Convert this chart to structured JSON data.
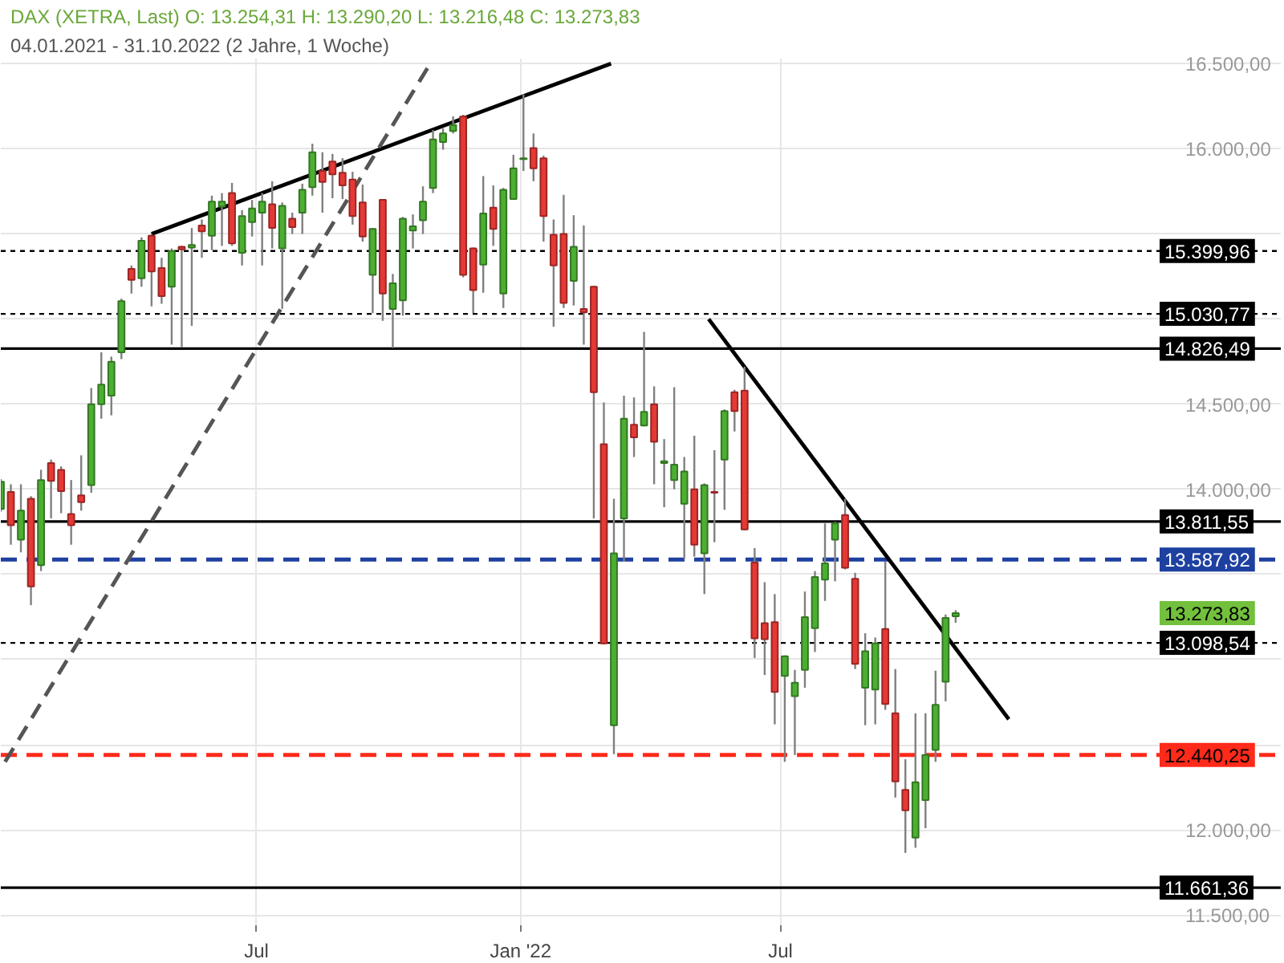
{
  "chart_data": {
    "type": "candlestick",
    "title": "DAX (XETRA, Last)  O: 13.254,31  H: 13.290,20  L: 13.216,48  C: 13.273,83",
    "subtitle": "04.01.2021 - 31.10.2022 (2 Jahre, 1 Woche)",
    "x": [
      "2021-01-04",
      "2021-01-11",
      "2021-01-18",
      "2021-01-25",
      "2021-02-01",
      "2021-02-08",
      "2021-02-15",
      "2021-02-22",
      "2021-03-01",
      "2021-03-08",
      "2021-03-15",
      "2021-03-22",
      "2021-03-29",
      "2021-04-05",
      "2021-04-12",
      "2021-04-19",
      "2021-04-26",
      "2021-05-03",
      "2021-05-10",
      "2021-05-17",
      "2021-05-24",
      "2021-05-31",
      "2021-06-07",
      "2021-06-14",
      "2021-06-21",
      "2021-06-28",
      "2021-07-05",
      "2021-07-12",
      "2021-07-19",
      "2021-07-26",
      "2021-08-02",
      "2021-08-09",
      "2021-08-16",
      "2021-08-23",
      "2021-08-30",
      "2021-09-06",
      "2021-09-13",
      "2021-09-20",
      "2021-09-27",
      "2021-10-04",
      "2021-10-11",
      "2021-10-18",
      "2021-10-25",
      "2021-11-01",
      "2021-11-08",
      "2021-11-15",
      "2021-11-22",
      "2021-11-29",
      "2021-12-06",
      "2021-12-13",
      "2021-12-20",
      "2021-12-27",
      "2022-01-03",
      "2022-01-10",
      "2022-01-17",
      "2022-01-24",
      "2022-01-31",
      "2022-02-07",
      "2022-02-14",
      "2022-02-21",
      "2022-02-28",
      "2022-03-07",
      "2022-03-14",
      "2022-03-21",
      "2022-03-28",
      "2022-04-04",
      "2022-04-11",
      "2022-04-18",
      "2022-04-25",
      "2022-05-02",
      "2022-05-09",
      "2022-05-16",
      "2022-05-23",
      "2022-05-30",
      "2022-06-06",
      "2022-06-13",
      "2022-06-20",
      "2022-06-27",
      "2022-07-04",
      "2022-07-11",
      "2022-07-18",
      "2022-07-25",
      "2022-08-01",
      "2022-08-08",
      "2022-08-15",
      "2022-08-22",
      "2022-08-29",
      "2022-09-05",
      "2022-09-12",
      "2022-09-19",
      "2022-09-26",
      "2022-10-03",
      "2022-10-10",
      "2022-10-17",
      "2022-10-24",
      "2022-10-31"
    ],
    "ohlc": [
      [
        13885,
        14060,
        13870,
        14045
      ],
      [
        13985,
        14030,
        13675,
        13790
      ],
      [
        13705,
        14030,
        13630,
        13875
      ],
      [
        13945,
        13960,
        13320,
        13430
      ],
      [
        13555,
        14115,
        13520,
        14055
      ],
      [
        14155,
        14175,
        13830,
        14050
      ],
      [
        14115,
        14135,
        13860,
        13990
      ],
      [
        13855,
        14055,
        13675,
        13790
      ],
      [
        13965,
        14200,
        13875,
        13925
      ],
      [
        14025,
        14595,
        13980,
        14500
      ],
      [
        14500,
        14805,
        14415,
        14615
      ],
      [
        14550,
        14780,
        14435,
        14750
      ],
      [
        14805,
        15120,
        14765,
        15105
      ],
      [
        15295,
        15315,
        15150,
        15230
      ],
      [
        15240,
        15480,
        15190,
        15460
      ],
      [
        15490,
        15500,
        15075,
        15280
      ],
      [
        15300,
        15360,
        15090,
        15135
      ],
      [
        15190,
        15415,
        14850,
        15400
      ],
      [
        15425,
        15430,
        14835,
        15410
      ],
      [
        15420,
        15535,
        14960,
        15435
      ],
      [
        15550,
        15585,
        15360,
        15515
      ],
      [
        15490,
        15725,
        15405,
        15690
      ],
      [
        15660,
        15740,
        15430,
        15690
      ],
      [
        15740,
        15800,
        15430,
        15445
      ],
      [
        15390,
        15640,
        15315,
        15605
      ],
      [
        15570,
        15700,
        15485,
        15650
      ],
      [
        15625,
        15740,
        15315,
        15690
      ],
      [
        15675,
        15810,
        15415,
        15535
      ],
      [
        15415,
        15685,
        15060,
        15665
      ],
      [
        15590,
        15625,
        15500,
        15540
      ],
      [
        15625,
        15795,
        15500,
        15760
      ],
      [
        15775,
        16030,
        15725,
        15980
      ],
      [
        15870,
        15980,
        15625,
        15805
      ],
      [
        15925,
        15970,
        15710,
        15850
      ],
      [
        15860,
        15945,
        15705,
        15785
      ],
      [
        15820,
        15865,
        15555,
        15605
      ],
      [
        15685,
        15790,
        15455,
        15485
      ],
      [
        15260,
        15535,
        15035,
        15530
      ],
      [
        15700,
        15705,
        14990,
        15150
      ],
      [
        15060,
        15265,
        14830,
        15210
      ],
      [
        15110,
        15600,
        15020,
        15590
      ],
      [
        15520,
        15615,
        15415,
        15545
      ],
      [
        15580,
        15780,
        15500,
        15690
      ],
      [
        15770,
        16110,
        15740,
        16055
      ],
      [
        16040,
        16120,
        15995,
        16090
      ],
      [
        16105,
        16190,
        16090,
        16140
      ],
      [
        16190,
        16200,
        15245,
        15260
      ],
      [
        15415,
        15420,
        15035,
        15170
      ],
      [
        15320,
        15840,
        15155,
        15620
      ],
      [
        15655,
        15785,
        15430,
        15530
      ],
      [
        15150,
        15770,
        15065,
        15760
      ],
      [
        15705,
        15965,
        15700,
        15885
      ],
      [
        15940,
        16320,
        15870,
        15945
      ],
      [
        16005,
        16090,
        15810,
        15885
      ],
      [
        15945,
        15960,
        15455,
        15605
      ],
      [
        15495,
        15585,
        14955,
        15315
      ],
      [
        15500,
        15730,
        15065,
        15095
      ],
      [
        15225,
        15610,
        15080,
        15425
      ],
      [
        15060,
        15550,
        14850,
        15040
      ],
      [
        15190,
        15195,
        13830,
        14570
      ],
      [
        14265,
        14510,
        13090,
        13095
      ],
      [
        12615,
        13945,
        12445,
        13625
      ],
      [
        13830,
        14550,
        13575,
        14415
      ],
      [
        14380,
        14540,
        14190,
        14305
      ],
      [
        14375,
        14925,
        14370,
        14455
      ],
      [
        14500,
        14605,
        14030,
        14280
      ],
      [
        14155,
        14295,
        13895,
        14165
      ],
      [
        14055,
        14600,
        14000,
        14145
      ],
      [
        13915,
        14190,
        13590,
        14105
      ],
      [
        14000,
        14315,
        13605,
        13675
      ],
      [
        13625,
        14035,
        13385,
        14025
      ],
      [
        13985,
        14230,
        13690,
        13980
      ],
      [
        14175,
        14470,
        13880,
        14460
      ],
      [
        14570,
        14585,
        14340,
        14460
      ],
      [
        14580,
        14720,
        13760,
        13765
      ],
      [
        13570,
        13655,
        13010,
        13125
      ],
      [
        13215,
        13455,
        12910,
        13120
      ],
      [
        13220,
        13385,
        12620,
        12810
      ],
      [
        12905,
        13025,
        12400,
        13020
      ],
      [
        12785,
        12940,
        12440,
        12865
      ],
      [
        12940,
        13400,
        12835,
        13250
      ],
      [
        13185,
        13520,
        13045,
        13485
      ],
      [
        13470,
        13800,
        13345,
        13565
      ],
      [
        13705,
        13810,
        13460,
        13800
      ],
      [
        13850,
        13945,
        13530,
        13540
      ],
      [
        13475,
        13510,
        12945,
        12975
      ],
      [
        12835,
        13155,
        12615,
        13050
      ],
      [
        12825,
        13130,
        12620,
        13095
      ],
      [
        13180,
        13575,
        12705,
        12740
      ],
      [
        12685,
        12945,
        12190,
        12285
      ],
      [
        12235,
        12415,
        11865,
        12115
      ],
      [
        11955,
        12685,
        11895,
        12280
      ],
      [
        12175,
        12685,
        12010,
        12440
      ],
      [
        12470,
        12935,
        12400,
        12735
      ],
      [
        12870,
        13265,
        12755,
        13245
      ],
      [
        13254.31,
        13290.2,
        13216.48,
        13273.83
      ]
    ],
    "colors": [
      "#4caf32",
      "#e53935",
      "#4caf32",
      "#e53935",
      "#4caf32",
      "#e53935",
      "#e53935",
      "#e53935",
      "#e53935",
      "#4caf32",
      "#4caf32",
      "#4caf32",
      "#4caf32",
      "#e53935",
      "#4caf32",
      "#e53935",
      "#e53935",
      "#4caf32",
      "#e53935",
      "#4caf32",
      "#e53935",
      "#4caf32",
      "#4caf32",
      "#e53935",
      "#4caf32",
      "#4caf32",
      "#4caf32",
      "#e53935",
      "#4caf32",
      "#e53935",
      "#4caf32",
      "#4caf32",
      "#e53935",
      "#e53935",
      "#e53935",
      "#e53935",
      "#e53935",
      "#4caf32",
      "#e53935",
      "#4caf32",
      "#4caf32",
      "#4caf32",
      "#4caf32",
      "#4caf32",
      "#4caf32",
      "#4caf32",
      "#e53935",
      "#e53935",
      "#4caf32",
      "#e53935",
      "#4caf32",
      "#4caf32",
      "#4caf32",
      "#e53935",
      "#e53935",
      "#e53935",
      "#e53935",
      "#4caf32",
      "#e53935",
      "#e53935",
      "#e53935",
      "#4caf32",
      "#4caf32",
      "#e53935",
      "#4caf32",
      "#e53935",
      "#4caf32",
      "#4caf32",
      "#4caf32",
      "#e53935",
      "#4caf32",
      "#e53935",
      "#4caf32",
      "#e53935",
      "#e53935",
      "#e53935",
      "#e53935",
      "#e53935",
      "#4caf32",
      "#4caf32",
      "#4caf32",
      "#4caf32",
      "#4caf32",
      "#4caf32",
      "#e53935",
      "#e53935",
      "#4caf32",
      "#4caf32",
      "#e53935",
      "#e53935",
      "#e53935",
      "#4caf32",
      "#4caf32",
      "#4caf32",
      "#4caf32",
      "#4caf32"
    ],
    "series": [
      {
        "type": "line",
        "x": [
          "2021-04-19",
          "2022-03-05"
        ],
        "values": [
          15500,
          16500
        ],
        "color": "#000000",
        "line_style": "solid"
      },
      {
        "type": "line",
        "x": [
          "2021-01-07",
          "2021-10-30"
        ],
        "values": [
          12400,
          16500
        ],
        "color": "#555555",
        "line_style": "dashed"
      },
      {
        "type": "line",
        "x": [
          "2022-05-12",
          "2022-12-07"
        ],
        "values": [
          15000,
          12650
        ],
        "color": "#000000",
        "line_style": "solid"
      }
    ],
    "ref_lines": [
      {
        "axis": "y",
        "value": 15399.96,
        "label": "15.399,96",
        "color": "#000000",
        "line_style": "dotted"
      },
      {
        "axis": "y",
        "value": 15030.77,
        "label": "15.030,77",
        "color": "#000000",
        "line_style": "dotted"
      },
      {
        "axis": "y",
        "value": 14826.49,
        "label": "14.826,49",
        "color": "#000000",
        "line_style": "solid"
      },
      {
        "axis": "y",
        "value": 13811.55,
        "label": "13.811,55",
        "color": "#000000",
        "line_style": "solid"
      },
      {
        "axis": "y",
        "value": 13587.92,
        "label": "13.587,92",
        "color": "#1e40a0",
        "line_style": "dashed"
      },
      {
        "axis": "y",
        "value": 13098.54,
        "label": "13.098,54",
        "color": "#000000",
        "line_style": "dotted"
      },
      {
        "axis": "y",
        "value": 12440.25,
        "label": "12.440,25",
        "color": "#ff2a1a",
        "line_style": "dashed"
      },
      {
        "axis": "y",
        "value": 11661.36,
        "label": "11.661,36",
        "color": "#000000",
        "line_style": "solid"
      }
    ],
    "annotations": [
      "13.273,83"
    ],
    "xlim": [
      "2021-01-04",
      "2023-06-15"
    ],
    "ylim": [
      11440,
      16530
    ],
    "xticks": [
      {
        "value": "2021-07-01",
        "label": "Jul"
      },
      {
        "value": "2022-01-01",
        "label": "Jan '22"
      },
      {
        "value": "2022-07-01",
        "label": "Jul"
      }
    ],
    "yticks": [
      {
        "value": 16500,
        "label": "16.500,00"
      },
      {
        "value": 16000,
        "label": "16.000,00"
      },
      {
        "value": 15500,
        "label": null
      },
      {
        "value": 15000,
        "label": null
      },
      {
        "value": 14500,
        "label": "14.500,00"
      },
      {
        "value": 14000,
        "label": "14.000,00"
      },
      {
        "value": 13500,
        "label": null
      },
      {
        "value": 13000,
        "label": null
      },
      {
        "value": 12500,
        "label": null
      },
      {
        "value": 12000,
        "label": "12.000,00"
      },
      {
        "value": 11500,
        "label": "11.500,00"
      }
    ],
    "grid": true
  }
}
